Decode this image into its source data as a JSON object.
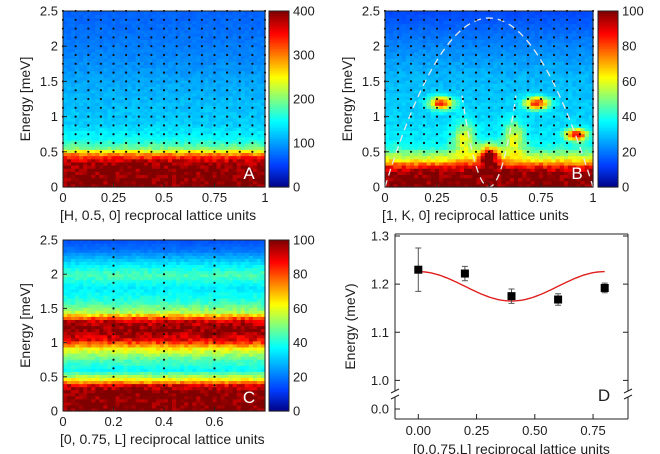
{
  "chart_data": [
    {
      "id": "A",
      "type": "heatmap",
      "panel_label": "A",
      "xlabel": "[H, 0.5, 0] recprocal lattice units",
      "ylabel": "Energy [meV]",
      "xlim": [
        0,
        1
      ],
      "ylim": [
        0,
        2.5
      ],
      "xticks": [
        "0",
        "0.25",
        "0.5",
        "0.75",
        "1"
      ],
      "yticks": [
        "0",
        "0.5",
        "1",
        "1.5",
        "2",
        "2.5"
      ],
      "colorbar": {
        "min": 0,
        "max": 400,
        "ticks": [
          "0",
          "100",
          "200",
          "300",
          "400"
        ]
      },
      "energy_profile": [
        [
          0,
          400
        ],
        [
          0.2,
          400
        ],
        [
          0.35,
          390
        ],
        [
          0.45,
          320
        ],
        [
          0.55,
          200
        ],
        [
          0.7,
          150
        ],
        [
          0.9,
          125
        ],
        [
          1.2,
          115
        ],
        [
          1.5,
          105
        ],
        [
          1.8,
          90
        ],
        [
          2.1,
          80
        ],
        [
          2.5,
          70
        ]
      ],
      "sample_points": {
        "x": [
          0,
          0.0625,
          0.125,
          0.1875,
          0.25,
          0.3125,
          0.375,
          0.4375,
          0.5,
          0.5625,
          0.625,
          0.6875,
          0.75,
          0.8125,
          0.875,
          0.9375,
          1
        ],
        "energy_min": 0.5,
        "energy_max": 2.5,
        "energy_step": 0.125
      }
    },
    {
      "id": "B",
      "type": "heatmap",
      "panel_label": "B",
      "xlabel": "[1, K, 0] reciprocal lattice units",
      "ylabel": "Energy [meV]",
      "xlim": [
        0,
        1
      ],
      "ylim": [
        0,
        2.5
      ],
      "xticks": [
        "0",
        "0.25",
        "0.5",
        "0.75",
        "1"
      ],
      "yticks": [
        "0",
        "0.5",
        "1",
        "1.5",
        "2",
        "2.5"
      ],
      "colorbar": {
        "min": 0,
        "max": 100,
        "ticks": [
          "0",
          "20",
          "40",
          "60",
          "80",
          "100"
        ]
      },
      "energy_profile": [
        [
          0,
          100
        ],
        [
          0.2,
          100
        ],
        [
          0.3,
          85
        ],
        [
          0.4,
          60
        ],
        [
          0.55,
          42
        ],
        [
          0.7,
          35
        ],
        [
          1,
          32
        ],
        [
          1.3,
          30
        ],
        [
          1.6,
          28
        ],
        [
          2,
          22
        ],
        [
          2.5,
          14
        ]
      ],
      "hot_spots": [
        {
          "x": 0.27,
          "energy": 1.2,
          "rx": 0.06,
          "re": 0.09,
          "amp": 55
        },
        {
          "x": 0.73,
          "energy": 1.2,
          "rx": 0.06,
          "re": 0.09,
          "amp": 55
        },
        {
          "x": 0.92,
          "energy": 0.75,
          "rx": 0.05,
          "re": 0.08,
          "amp": 60
        },
        {
          "x": 0.5,
          "energy": 0.45,
          "rx": 0.05,
          "re": 0.15,
          "amp": 50
        },
        {
          "x": 0.38,
          "energy": 0.7,
          "rx": 0.05,
          "re": 0.25,
          "amp": 25
        },
        {
          "x": 0.62,
          "energy": 0.7,
          "rx": 0.05,
          "re": 0.25,
          "amp": 25
        }
      ],
      "dispersion_curves": {
        "outer": {
          "center": 0.5,
          "peak": 2.4,
          "half_width": 0.5
        },
        "inner": {
          "center": 0.5,
          "peak": 1.3,
          "half_width": 0.13
        }
      },
      "sample_points": {
        "x": [
          0,
          0.0625,
          0.125,
          0.1875,
          0.25,
          0.3125,
          0.375,
          0.4375,
          0.5,
          0.5625,
          0.625,
          0.6875,
          0.75,
          0.8125,
          0.875,
          0.9375,
          1
        ],
        "energy_min": 0.5,
        "energy_max": 2.5,
        "energy_step": 0.125
      }
    },
    {
      "id": "C",
      "type": "heatmap",
      "panel_label": "C",
      "xlabel": "[0, 0.75, L] reciprocal lattice units",
      "ylabel": "Energy [meV]",
      "xlim": [
        0,
        0.8
      ],
      "ylim": [
        0,
        2.5
      ],
      "xticks": [
        "0",
        "0.2",
        "0.4",
        "0.6"
      ],
      "xtick_values": [
        0,
        0.2,
        0.4,
        0.6
      ],
      "yticks": [
        "0",
        "0.5",
        "1",
        "1.5",
        "2",
        "2.5"
      ],
      "colorbar": {
        "min": 0,
        "max": 100,
        "ticks": [
          "0",
          "20",
          "40",
          "60",
          "80",
          "100"
        ]
      },
      "energy_profile": [
        [
          0,
          100
        ],
        [
          0.3,
          100
        ],
        [
          0.38,
          90
        ],
        [
          0.45,
          65
        ],
        [
          0.6,
          38
        ],
        [
          0.75,
          45
        ],
        [
          0.9,
          60
        ],
        [
          1.05,
          90
        ],
        [
          1.2,
          100
        ],
        [
          1.32,
          92
        ],
        [
          1.45,
          55
        ],
        [
          1.6,
          42
        ],
        [
          1.8,
          35
        ],
        [
          2,
          45
        ],
        [
          2.15,
          35
        ],
        [
          2.35,
          20
        ],
        [
          2.5,
          15
        ]
      ],
      "sample_points": {
        "x": [
          0.2,
          0.4,
          0.6
        ],
        "energy_min": 0.375,
        "energy_max": 2.5,
        "energy_step": 0.125
      }
    },
    {
      "id": "D",
      "type": "scatter",
      "panel_label": "D",
      "xlabel": "[0,0.75,L] reciprocal lattice units",
      "ylabel": "Energy (meV)",
      "xlim": [
        -0.1,
        0.9
      ],
      "y_axis_break": true,
      "xticks": [
        "0.00",
        "0.25",
        "0.50",
        "0.75"
      ],
      "xtick_values": [
        0,
        0.25,
        0.5,
        0.75
      ],
      "yticks_lower": [
        "0.0"
      ],
      "yticks_upper": [
        "1.0",
        "1.1",
        "1.2",
        "1.3"
      ],
      "ylim_upper": [
        0.98,
        1.3
      ],
      "series": [
        {
          "x": [
            0.0,
            0.2,
            0.4,
            0.6,
            0.8
          ],
          "y": [
            1.23,
            1.222,
            1.175,
            1.168,
            1.192
          ],
          "yerr": [
            0.045,
            0.015,
            0.015,
            0.012,
            0.01
          ]
        }
      ],
      "fit_curve": {
        "type": "cosine",
        "mean": 1.1955,
        "amplitude": 0.0305,
        "period": 0.8,
        "color": "#e0201f"
      },
      "marker_color": "#000000"
    }
  ]
}
